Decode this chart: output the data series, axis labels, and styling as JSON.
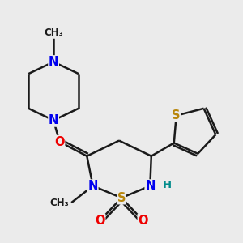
{
  "bg_color": "#ebebeb",
  "bond_color": "#1a1a1a",
  "N_color": "#0000ee",
  "O_color": "#ee0000",
  "S_color": "#b8860b",
  "H_color": "#008b8b",
  "line_width": 1.8,
  "font_size": 10.5,
  "xlim": [
    0,
    10
  ],
  "ylim": [
    0,
    10
  ]
}
